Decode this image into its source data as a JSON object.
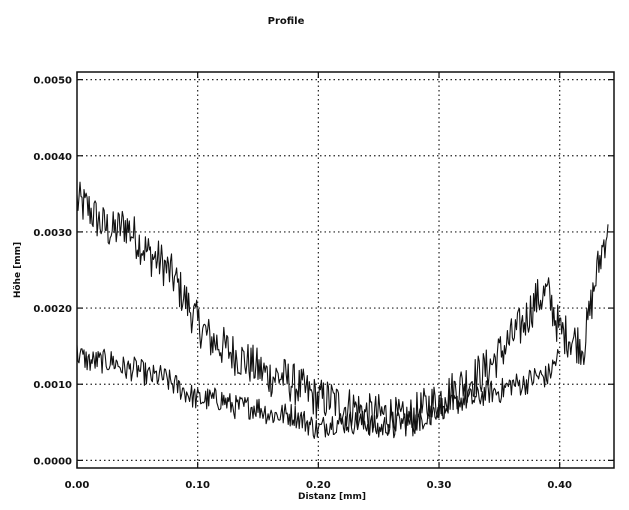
{
  "chart_data": {
    "type": "line",
    "title": "Profile",
    "xlabel": "Distanz [mm]",
    "ylabel": "Höhe [mm]",
    "xlim": [
      0.0,
      0.445
    ],
    "ylim": [
      -0.0001,
      0.0051
    ],
    "x_ticks": [
      0.0,
      0.1,
      0.2,
      0.3,
      0.4
    ],
    "x_tick_labels": [
      "0.00",
      "0.10",
      "0.20",
      "0.30",
      "0.40"
    ],
    "y_ticks": [
      0.0,
      0.001,
      0.002,
      0.003,
      0.004,
      0.005
    ],
    "y_tick_labels": [
      "0.0000",
      "0.0010",
      "0.0020",
      "0.0030",
      "0.0040",
      "0.0050"
    ],
    "grid": true,
    "grid_style": "dotted",
    "legend": "none",
    "series": [
      {
        "color": "#111111",
        "x": [
          0.0,
          0.01,
          0.02,
          0.03,
          0.04,
          0.05,
          0.06,
          0.07,
          0.08,
          0.09,
          0.1,
          0.11,
          0.12,
          0.13,
          0.14,
          0.15,
          0.16,
          0.17,
          0.18,
          0.19,
          0.2,
          0.21,
          0.22,
          0.23,
          0.24,
          0.25,
          0.26,
          0.27,
          0.28,
          0.29,
          0.3,
          0.31,
          0.32,
          0.33,
          0.34,
          0.35,
          0.36,
          0.37,
          0.38,
          0.39,
          0.4,
          0.41,
          0.42,
          0.43,
          0.44
        ],
        "y": [
          0.0034,
          0.0033,
          0.0031,
          0.003,
          0.0031,
          0.0029,
          0.0027,
          0.0026,
          0.0024,
          0.0021,
          0.0018,
          0.0016,
          0.0015,
          0.0014,
          0.0013,
          0.0012,
          0.0011,
          0.0011,
          0.001,
          0.0009,
          0.0008,
          0.0008,
          0.0007,
          0.0007,
          0.0006,
          0.0006,
          0.0006,
          0.0005,
          0.0006,
          0.0007,
          0.0008,
          0.0009,
          0.001,
          0.0011,
          0.0012,
          0.0014,
          0.0016,
          0.0018,
          0.0021,
          0.0022,
          0.0017,
          0.0016,
          0.0015,
          0.0024,
          0.0031
        ],
        "noise": 0.00028
      },
      {
        "color": "#111111",
        "x": [
          0.0,
          0.01,
          0.02,
          0.03,
          0.04,
          0.05,
          0.06,
          0.07,
          0.08,
          0.09,
          0.1,
          0.11,
          0.12,
          0.13,
          0.14,
          0.15,
          0.16,
          0.17,
          0.18,
          0.19,
          0.2,
          0.21,
          0.22,
          0.23,
          0.24,
          0.25,
          0.26,
          0.27,
          0.28,
          0.29,
          0.3,
          0.31,
          0.32,
          0.33,
          0.34,
          0.35,
          0.36,
          0.37,
          0.38,
          0.39,
          0.4
        ],
        "y": [
          0.0014,
          0.0013,
          0.0013,
          0.0013,
          0.0012,
          0.0012,
          0.0011,
          0.0011,
          0.001,
          0.0009,
          0.0008,
          0.0008,
          0.0008,
          0.0007,
          0.0007,
          0.0007,
          0.0006,
          0.0006,
          0.0006,
          0.0005,
          0.0004,
          0.0005,
          0.0005,
          0.0005,
          0.0005,
          0.0004,
          0.0005,
          0.0005,
          0.0005,
          0.0006,
          0.0007,
          0.0007,
          0.0008,
          0.0008,
          0.0009,
          0.0009,
          0.001,
          0.001,
          0.0011,
          0.0011,
          0.0014
        ],
        "noise": 0.00016
      }
    ]
  }
}
